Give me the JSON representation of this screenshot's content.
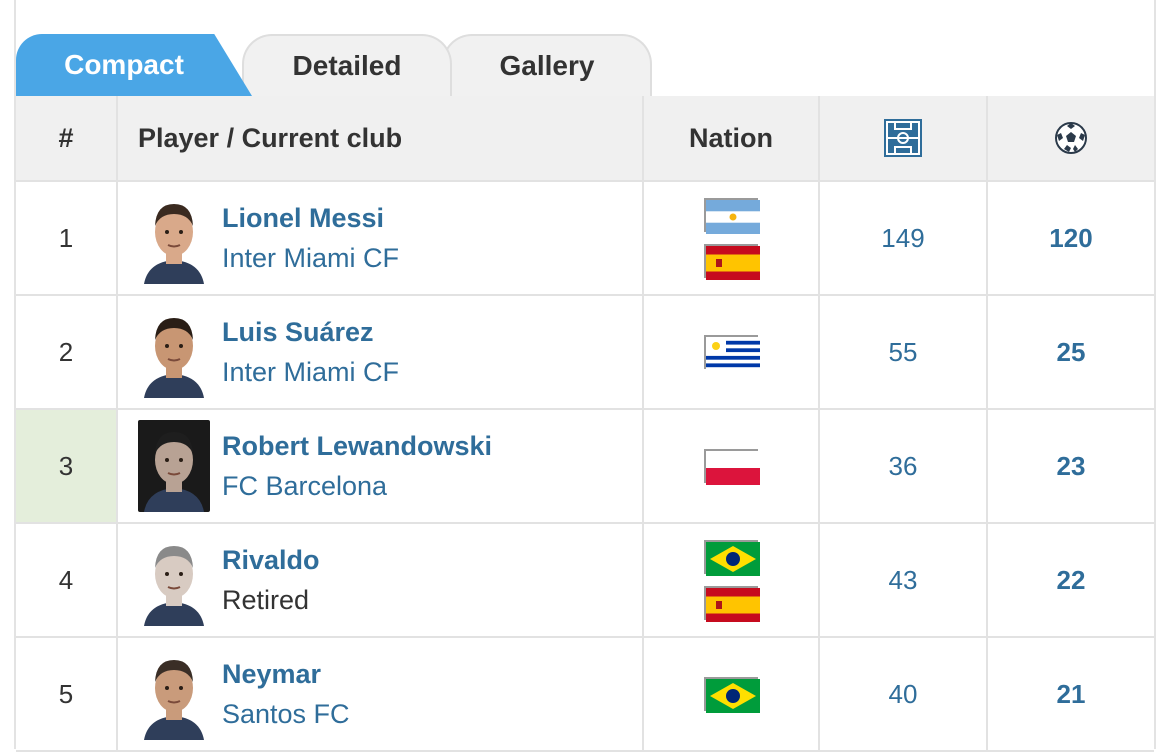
{
  "tabs": [
    {
      "label": "Compact",
      "active": true
    },
    {
      "label": "Detailed",
      "active": false
    },
    {
      "label": "Gallery",
      "active": false
    }
  ],
  "header": {
    "rank": "#",
    "player": "Player / Current club",
    "nation": "Nation",
    "apps_icon": "pitch-icon",
    "goals_icon": "ball-icon"
  },
  "players": [
    {
      "rank": "1",
      "name": "Lionel Messi",
      "club": "Inter Miami CF",
      "apps": "149",
      "goals": "120",
      "nations": [
        "argentina",
        "spain"
      ],
      "highlight": false
    },
    {
      "rank": "2",
      "name": "Luis Suárez",
      "club": "Inter Miami CF",
      "apps": "55",
      "goals": "25",
      "nations": [
        "uruguay"
      ],
      "highlight": false
    },
    {
      "rank": "3",
      "name": "Robert Lewandowski",
      "club": "FC Barcelona",
      "apps": "36",
      "goals": "23",
      "nations": [
        "poland"
      ],
      "highlight": true
    },
    {
      "rank": "4",
      "name": "Rivaldo",
      "club": "Retired",
      "apps": "43",
      "goals": "22",
      "nations": [
        "brazil",
        "spain"
      ],
      "highlight": false
    },
    {
      "rank": "5",
      "name": "Neymar",
      "club": "Santos FC",
      "apps": "40",
      "goals": "21",
      "nations": [
        "brazil"
      ],
      "highlight": false
    }
  ],
  "colors": {
    "accent_tab": "#4aa6e6",
    "link": "#2f6d9a",
    "header_bg": "#f0f0f0",
    "highlight_rank": "#e4eedb"
  }
}
